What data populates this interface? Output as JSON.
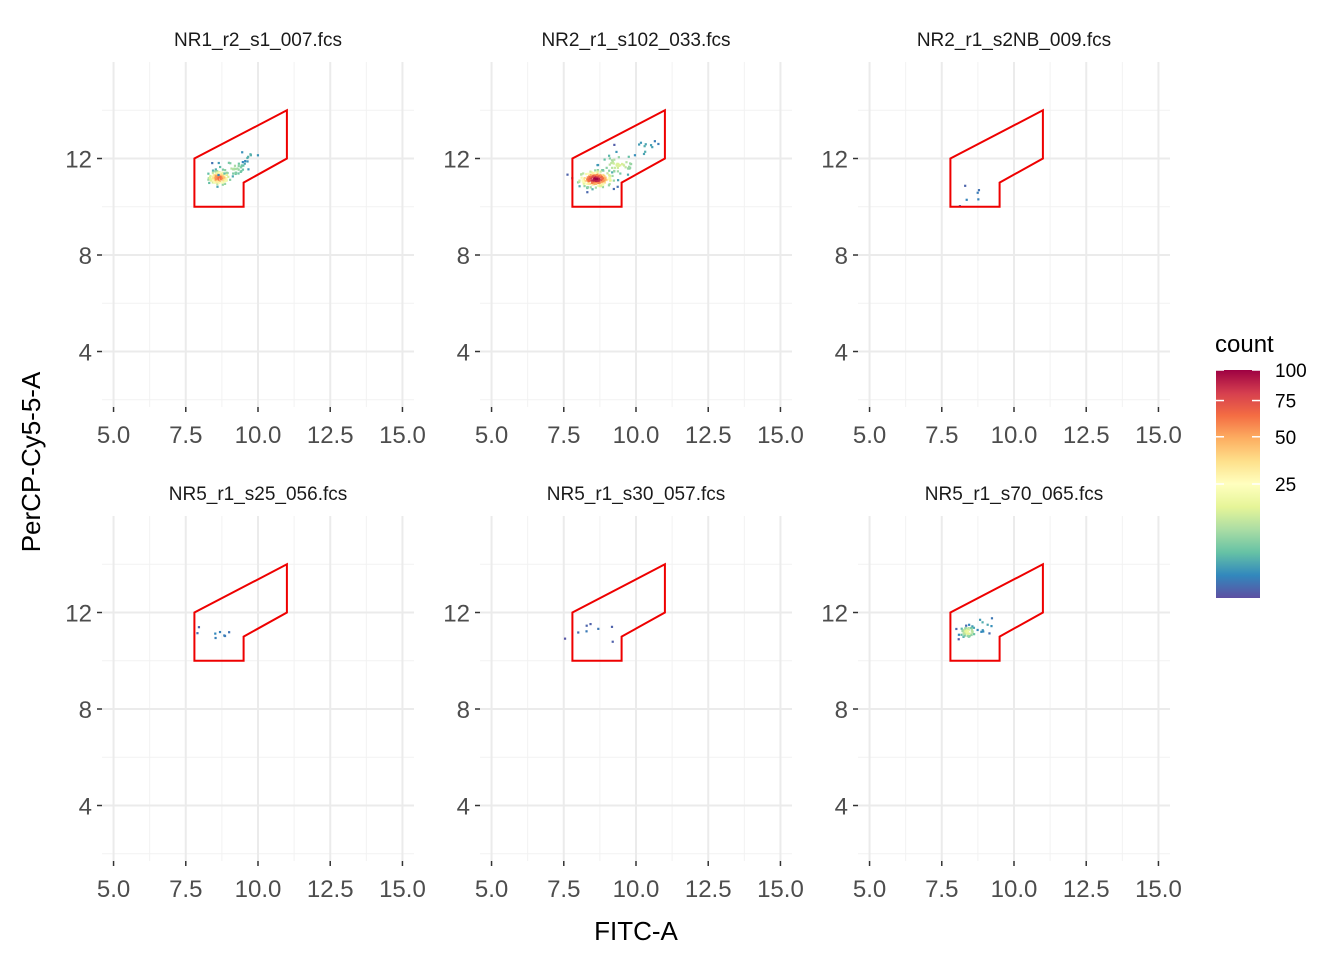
{
  "chart_data": {
    "type": "heatmap",
    "xlabel": "FITC-A",
    "ylabel": "PerCP-Cy5-5-A",
    "xlim": [
      4.6,
      15.4
    ],
    "ylim": [
      1.7,
      16.0
    ],
    "x_ticks": [
      5.0,
      7.5,
      10.0,
      12.5,
      15.0
    ],
    "x_tick_labels": [
      "5.0",
      "7.5",
      "10.0",
      "12.5",
      "15.0"
    ],
    "y_ticks": [
      4,
      8,
      12
    ],
    "y_tick_labels": [
      "4",
      "8",
      "12"
    ],
    "grid": true,
    "gate": {
      "color": "#ee0000",
      "polygon": [
        [
          7.8,
          10.0
        ],
        [
          9.5,
          10.0
        ],
        [
          9.5,
          11.0
        ],
        [
          11.0,
          12.0
        ],
        [
          11.0,
          14.0
        ],
        [
          7.8,
          12.0
        ]
      ]
    },
    "legend": {
      "title": "count",
      "position": "right",
      "ticks": [
        25,
        50,
        75,
        100
      ],
      "tick_labels": [
        "25",
        "50",
        "75",
        "100"
      ],
      "colors": [
        "#5e4fa2",
        "#3288bd",
        "#66c2a5",
        "#abdda4",
        "#e6f598",
        "#ffffbf",
        "#fee08b",
        "#fdae61",
        "#f46d43",
        "#d53e4f",
        "#9e0142"
      ]
    },
    "panels": [
      {
        "name": "NR1_r2_s1_007.fcs",
        "clusters": [
          {
            "cx": 8.65,
            "cy": 11.2,
            "sx": 0.18,
            "sy": 0.14,
            "n": 110,
            "peak": 70
          },
          {
            "cx": 9.1,
            "cy": 11.6,
            "sx": 0.3,
            "sy": 0.2,
            "n": 35,
            "peak": 10
          },
          {
            "cx": 9.7,
            "cy": 12.1,
            "sx": 0.25,
            "sy": 0.2,
            "n": 8,
            "peak": 3
          }
        ]
      },
      {
        "name": "NR2_r1_s102_033.fcs",
        "clusters": [
          {
            "cx": 8.6,
            "cy": 11.15,
            "sx": 0.28,
            "sy": 0.16,
            "n": 190,
            "peak": 100
          },
          {
            "cx": 9.4,
            "cy": 11.75,
            "sx": 0.35,
            "sy": 0.25,
            "n": 45,
            "peak": 15
          },
          {
            "cx": 10.3,
            "cy": 12.4,
            "sx": 0.3,
            "sy": 0.25,
            "n": 10,
            "peak": 3
          }
        ]
      },
      {
        "name": "NR2_r1_s2NB_009.fcs",
        "clusters": [
          {
            "cx": 8.5,
            "cy": 10.4,
            "sx": 0.4,
            "sy": 0.25,
            "n": 6,
            "peak": 1
          }
        ]
      },
      {
        "name": "NR5_r1_s25_056.fcs",
        "clusters": [
          {
            "cx": 8.5,
            "cy": 11.1,
            "sx": 0.4,
            "sy": 0.2,
            "n": 8,
            "peak": 1
          }
        ]
      },
      {
        "name": "NR5_r1_s30_057.fcs",
        "clusters": [
          {
            "cx": 8.6,
            "cy": 11.1,
            "sx": 0.4,
            "sy": 0.2,
            "n": 8,
            "peak": 1
          }
        ]
      },
      {
        "name": "NR5_r1_s70_065.fcs",
        "clusters": [
          {
            "cx": 8.4,
            "cy": 11.2,
            "sx": 0.14,
            "sy": 0.12,
            "n": 55,
            "peak": 20
          },
          {
            "cx": 8.9,
            "cy": 11.5,
            "sx": 0.25,
            "sy": 0.2,
            "n": 10,
            "peak": 3
          }
        ]
      }
    ]
  }
}
